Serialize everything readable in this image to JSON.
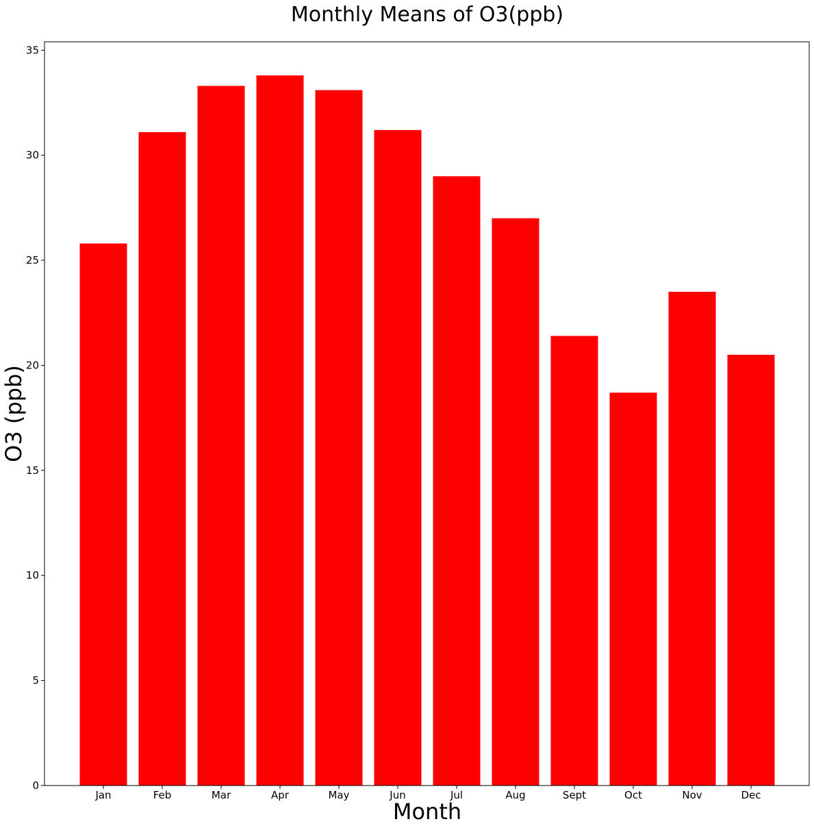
{
  "chart_data": {
    "type": "bar",
    "title": "Monthly Means of O3(ppb)",
    "xlabel": "Month",
    "ylabel": "O3 (ppb)",
    "categories": [
      "Jan",
      "Feb",
      "Mar",
      "Apr",
      "May",
      "Jun",
      "Jul",
      "Aug",
      "Sept",
      "Oct",
      "Nov",
      "Dec"
    ],
    "values": [
      25.8,
      31.1,
      33.3,
      33.8,
      33.1,
      31.2,
      29.0,
      27.0,
      21.4,
      18.7,
      23.5,
      20.5
    ],
    "ylim": [
      0,
      35.4
    ],
    "yticks": [
      0,
      5,
      10,
      15,
      20,
      25,
      30,
      35
    ],
    "grid": false,
    "legend": "none",
    "bar_color": "#ff0000"
  }
}
